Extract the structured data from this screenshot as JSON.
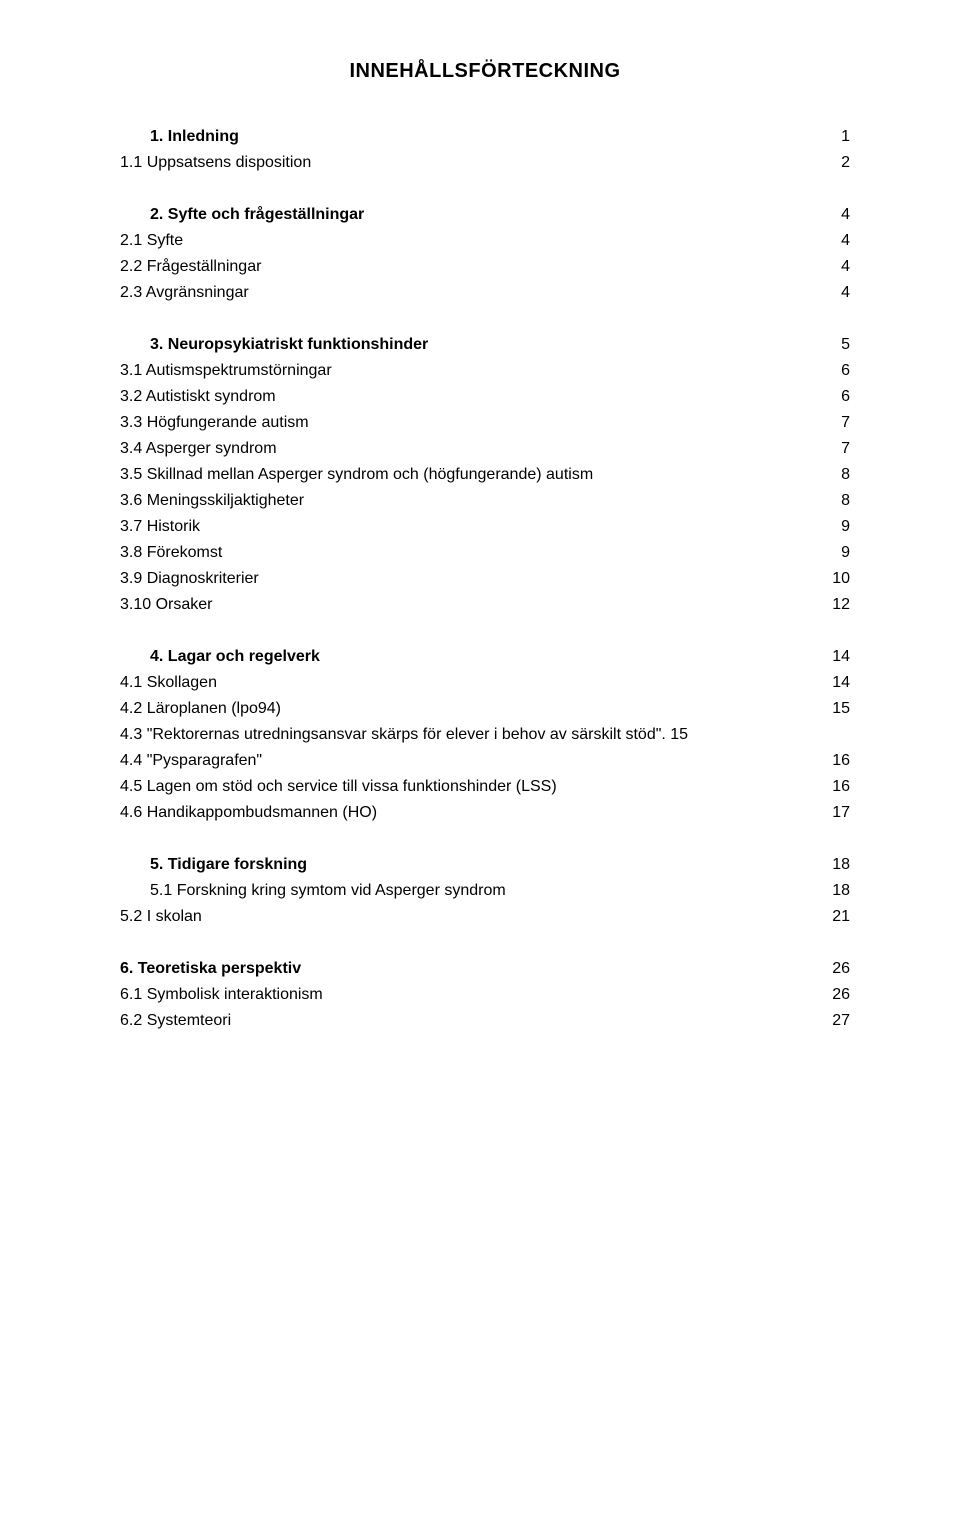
{
  "title": "INNEHÅLLSFÖRTECKNING",
  "sections": [
    {
      "entries": [
        {
          "label": "1.",
          "title": "Inledning",
          "page": "1",
          "bold": true,
          "tab": true
        },
        {
          "label": "1.1 Uppsatsens disposition",
          "title": "",
          "page": "2",
          "bold": false,
          "tab": false
        }
      ]
    },
    {
      "entries": [
        {
          "label": "2.",
          "title": "Syfte och frågeställningar",
          "page": "4",
          "bold": true,
          "tab": true
        },
        {
          "label": "2.1 Syfte",
          "title": "",
          "page": "4",
          "bold": false,
          "tab": false
        },
        {
          "label": "2.2 Frågeställningar",
          "title": "",
          "page": "4",
          "bold": false,
          "tab": false
        },
        {
          "label": "2.3 Avgränsningar",
          "title": "",
          "page": "4",
          "bold": false,
          "tab": false
        }
      ]
    },
    {
      "entries": [
        {
          "label": "3.",
          "title": "Neuropsykiatriskt funktionshinder",
          "page": "5",
          "bold": true,
          "tab": true
        },
        {
          "label": "3.1 Autismspektrumstörningar",
          "title": "",
          "page": "6",
          "bold": false,
          "tab": false
        },
        {
          "label": "3.2 Autistiskt syndrom",
          "title": "",
          "page": "6",
          "bold": false,
          "tab": false
        },
        {
          "label": "3.3 Högfungerande autism",
          "title": "",
          "page": "7",
          "bold": false,
          "tab": false
        },
        {
          "label": "3.4 Asperger syndrom",
          "title": "",
          "page": "7",
          "bold": false,
          "tab": false
        },
        {
          "label": "3.5 Skillnad mellan Asperger syndrom och (högfungerande) autism",
          "title": "",
          "page": "8",
          "bold": false,
          "tab": false
        },
        {
          "label": "3.6 Meningsskiljaktigheter",
          "title": "",
          "page": "8",
          "bold": false,
          "tab": false
        },
        {
          "label": "3.7 Historik",
          "title": "",
          "page": "9",
          "bold": false,
          "tab": false
        },
        {
          "label": "3.8 Förekomst",
          "title": "",
          "page": "9",
          "bold": false,
          "tab": false
        },
        {
          "label": "3.9 Diagnoskriterier",
          "title": "",
          "page": "10",
          "bold": false,
          "tab": false
        },
        {
          "label": "3.10 Orsaker",
          "title": "",
          "page": "12",
          "bold": false,
          "tab": false
        }
      ]
    },
    {
      "entries": [
        {
          "label": "4.",
          "title": "Lagar och regelverk",
          "page": "14",
          "bold": true,
          "tab": true
        },
        {
          "label": "4.1 Skollagen",
          "title": "",
          "page": "14",
          "bold": false,
          "tab": false
        },
        {
          "label": "4.2 Läroplanen (lpo94)",
          "title": "",
          "page": "15",
          "bold": false,
          "tab": false
        },
        {
          "label": "4.3 \"Rektorernas utredningsansvar skärps för elever i behov av särskilt stöd\"",
          "title": "",
          "page": ". 15",
          "bold": false,
          "tab": false,
          "nodots": true
        },
        {
          "label": "4.4 \"Pysparagrafen\"",
          "title": "",
          "page": "16",
          "bold": false,
          "tab": false
        },
        {
          "label": "4.5 Lagen om stöd och service till vissa funktionshinder (LSS)",
          "title": "",
          "page": "16",
          "bold": false,
          "tab": false
        },
        {
          "label": "4.6 Handikappombudsmannen (HO)",
          "title": "",
          "page": "17",
          "bold": false,
          "tab": false
        }
      ]
    },
    {
      "entries": [
        {
          "label": "5.",
          "title": "Tidigare forskning",
          "page": "18",
          "bold": true,
          "tab": true
        },
        {
          "label": "5.1",
          "title": "Forskning kring symtom vid Asperger syndrom",
          "page": "18",
          "bold": false,
          "tab": true
        },
        {
          "label": "5.2 I skolan",
          "title": "",
          "page": "21",
          "bold": false,
          "tab": false
        }
      ]
    },
    {
      "entries": [
        {
          "label": "6. Teoretiska perspektiv",
          "title": "",
          "page": "26",
          "bold": true,
          "tab": false
        },
        {
          "label": "6.1 Symbolisk interaktionism",
          "title": "",
          "page": "26",
          "bold": false,
          "tab": false
        },
        {
          "label": "6.2 Systemteori",
          "title": "",
          "page": "27",
          "bold": false,
          "tab": false
        }
      ]
    }
  ]
}
